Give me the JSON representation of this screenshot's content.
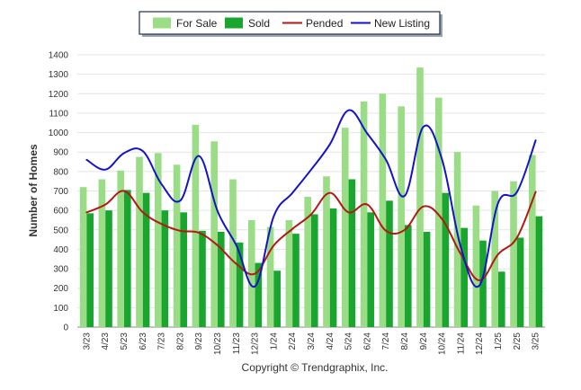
{
  "chart_data": {
    "type": "bar",
    "ylabel": "Number of Homes",
    "ylim": [
      0,
      1400
    ],
    "yticks": [
      0,
      100,
      200,
      300,
      400,
      500,
      600,
      700,
      800,
      900,
      1000,
      1100,
      1200,
      1300,
      1400
    ],
    "grid": true,
    "legend_position": "top-center",
    "categories": [
      "3/23",
      "4/23",
      "5/23",
      "6/23",
      "7/23",
      "8/23",
      "9/23",
      "10/23",
      "11/23",
      "12/23",
      "1/24",
      "2/24",
      "3/24",
      "4/24",
      "5/24",
      "6/24",
      "7/24",
      "8/24",
      "9/24",
      "10/24",
      "11/24",
      "12/24",
      "1/25",
      "2/25",
      "3/25"
    ],
    "series": [
      {
        "name": "For Sale",
        "kind": "bar",
        "color": "#9bdc87",
        "values": [
          720,
          760,
          805,
          875,
          895,
          835,
          1040,
          955,
          760,
          550,
          515,
          550,
          670,
          775,
          1025,
          1160,
          1200,
          1135,
          1335,
          1180,
          900,
          625,
          700,
          750,
          885
        ]
      },
      {
        "name": "Sold",
        "kind": "bar",
        "color": "#1aa52f",
        "values": [
          585,
          600,
          705,
          690,
          600,
          590,
          495,
          490,
          435,
          330,
          290,
          480,
          580,
          610,
          760,
          590,
          650,
          525,
          490,
          690,
          510,
          445,
          285,
          460,
          570
        ]
      },
      {
        "name": "Pended",
        "kind": "line",
        "color": "#b11a14",
        "values": [
          590,
          630,
          700,
          590,
          530,
          495,
          485,
          420,
          325,
          275,
          420,
          505,
          580,
          690,
          590,
          630,
          495,
          500,
          620,
          555,
          375,
          240,
          375,
          460,
          695
        ]
      },
      {
        "name": "New Listing",
        "kind": "line",
        "color": "#1313c9",
        "values": [
          860,
          810,
          895,
          905,
          735,
          650,
          880,
          595,
          420,
          210,
          570,
          690,
          810,
          940,
          1115,
          995,
          860,
          675,
          1030,
          860,
          410,
          215,
          640,
          695,
          960
        ]
      }
    ]
  },
  "footer": {
    "copyright": "Copyright © Trendgraphix, Inc."
  }
}
